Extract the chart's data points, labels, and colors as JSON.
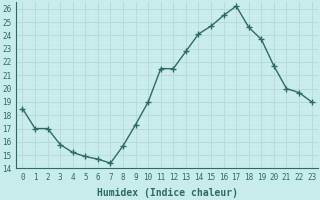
{
  "x": [
    0,
    1,
    2,
    3,
    4,
    5,
    6,
    7,
    8,
    9,
    10,
    11,
    12,
    13,
    14,
    15,
    16,
    17,
    18,
    19,
    20,
    21,
    22,
    23
  ],
  "y": [
    18.5,
    17.0,
    17.0,
    15.8,
    15.2,
    14.9,
    14.7,
    14.4,
    15.7,
    17.3,
    19.0,
    21.5,
    21.5,
    22.8,
    24.1,
    24.7,
    25.5,
    26.2,
    24.6,
    23.7,
    21.7,
    20.0,
    19.7,
    19.0
  ],
  "line_color": "#2e6b5e",
  "bg_color": "#c8ecec",
  "grid_major_color": "#b8dada",
  "grid_minor_color": "#d4eeee",
  "xlabel": "Humidex (Indice chaleur)",
  "ylim": [
    14,
    26.5
  ],
  "xlim": [
    -0.5,
    23.5
  ],
  "yticks": [
    14,
    15,
    16,
    17,
    18,
    19,
    20,
    21,
    22,
    23,
    24,
    25,
    26
  ],
  "xticks": [
    0,
    1,
    2,
    3,
    4,
    5,
    6,
    7,
    8,
    9,
    10,
    11,
    12,
    13,
    14,
    15,
    16,
    17,
    18,
    19,
    20,
    21,
    22,
    23
  ],
  "xtick_labels": [
    "0",
    "1",
    "2",
    "3",
    "4",
    "5",
    "6",
    "7",
    "8",
    "9",
    "10",
    "11",
    "12",
    "13",
    "14",
    "15",
    "16",
    "17",
    "18",
    "19",
    "20",
    "21",
    "22",
    "23"
  ],
  "marker": "+",
  "linewidth": 1.0,
  "markersize": 4,
  "tick_fontsize": 5.5,
  "xlabel_fontsize": 7
}
